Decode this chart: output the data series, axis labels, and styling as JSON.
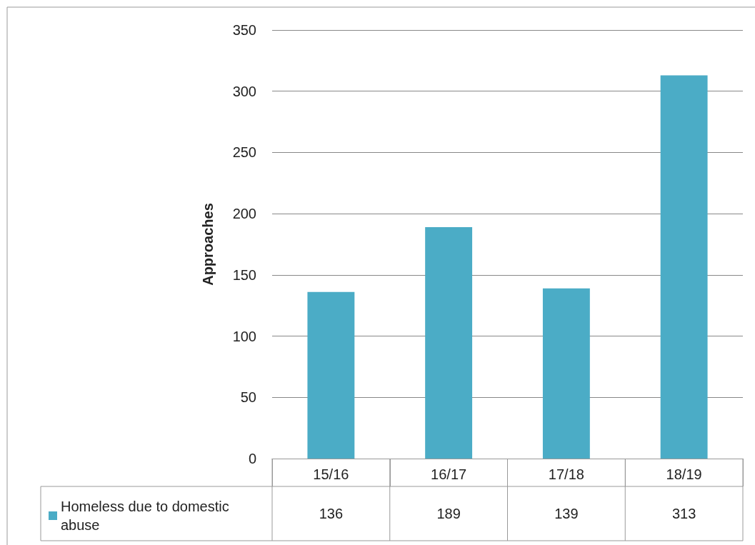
{
  "chart_data": {
    "type": "bar",
    "ylabel": "Approaches",
    "categories": [
      "15/16",
      "16/17",
      "17/18",
      "18/19"
    ],
    "series": [
      {
        "name": "Homeless due to domestic abuse",
        "color": "#4bacc6",
        "values": [
          136,
          189,
          139,
          313
        ]
      }
    ],
    "ylim": [
      0,
      350
    ],
    "yticks": [
      0,
      50,
      100,
      150,
      200,
      250,
      300,
      350
    ],
    "grid": "y",
    "legend": "bottom left",
    "data_labels": true
  }
}
